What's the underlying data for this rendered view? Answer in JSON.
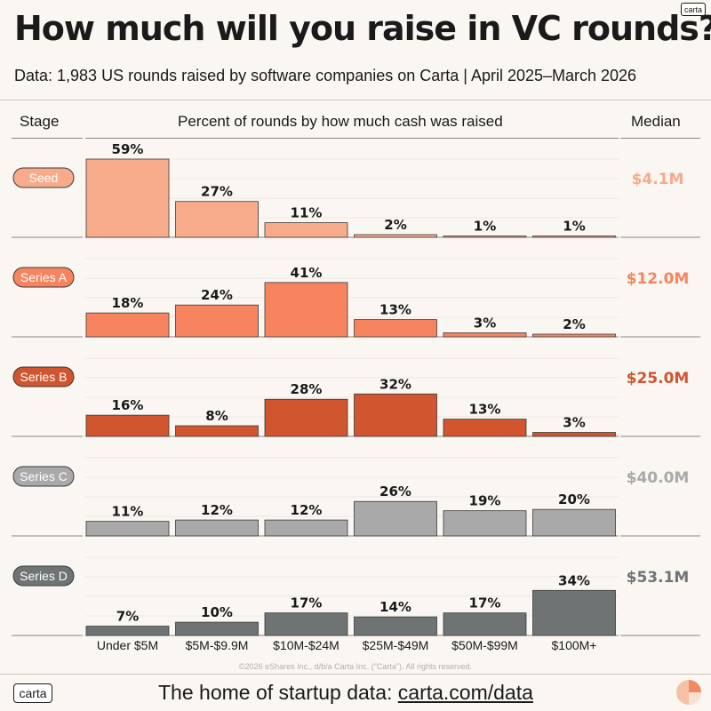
{
  "header": {
    "logo": "carta",
    "title": "How much will you raise in VC rounds?",
    "subtitle": "Data: 1,983 US rounds raised by software companies on Carta | April 2025–March 2026"
  },
  "columns": {
    "stage": "Stage",
    "percent": "Percent of rounds by how much cash was raised",
    "median": "Median"
  },
  "chart_data": {
    "type": "bar",
    "title": "How much will you raise in VC rounds?",
    "categories": [
      "Under $5M",
      "$5M-$9.9M",
      "$10M-$24M",
      "$25M-$49M",
      "$50M-$99M",
      "$100M+"
    ],
    "ylim": [
      0,
      60
    ],
    "series": [
      {
        "name": "Seed",
        "values": [
          59,
          27,
          11,
          2,
          1,
          1
        ],
        "median": "$4.1M",
        "color": "#f7ab8a",
        "label_text_color": "#ffffff"
      },
      {
        "name": "Series A",
        "values": [
          18,
          24,
          41,
          13,
          3,
          2
        ],
        "median": "$12.0M",
        "color": "#f7845f",
        "label_text_color": "#ffffff"
      },
      {
        "name": "Series B",
        "values": [
          16,
          8,
          28,
          32,
          13,
          3
        ],
        "median": "$25.0M",
        "color": "#d1552e",
        "label_text_color": "#ffffff"
      },
      {
        "name": "Series C",
        "values": [
          11,
          12,
          12,
          26,
          19,
          20
        ],
        "median": "$40.0M",
        "color": "#a9a9a9",
        "label_text_color": "#ffffff"
      },
      {
        "name": "Series D",
        "values": [
          7,
          10,
          17,
          14,
          17,
          34
        ],
        "median": "$53.1M",
        "color": "#6e7474",
        "label_text_color": "#ffffff"
      }
    ]
  },
  "footer": {
    "copyright": "©2026 eShares Inc., d/b/a Carta Inc. (\"Carta\"). All rights reserved.",
    "logo": "carta",
    "tagline_prefix": "The home of startup data: ",
    "tagline_link": "carta.com/data"
  }
}
